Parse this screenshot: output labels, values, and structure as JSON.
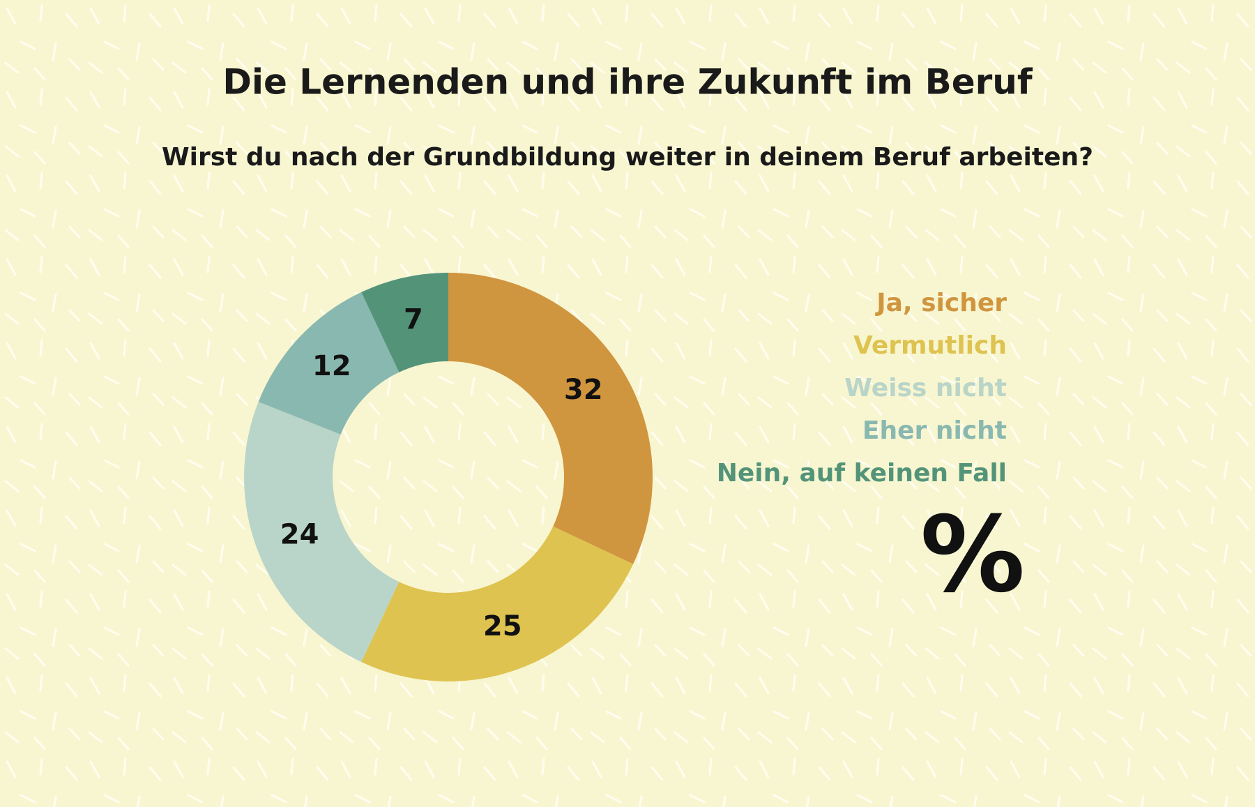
{
  "chart_data": {
    "type": "donut",
    "title": "Die Lernenden und ihre Zukunft im Beruf",
    "subtitle": "Wirst du nach der Grundbildung weiter in deinem Beruf arbeiten?",
    "categories": [
      "Ja, sicher",
      "Vermutlich",
      "Weiss nicht",
      "Eher nicht",
      "Nein, auf keinen Fall"
    ],
    "values": [
      32,
      25,
      24,
      12,
      7
    ],
    "colors": [
      "#d0953f",
      "#dfc350",
      "#b9d4c8",
      "#89b8b0",
      "#539479"
    ],
    "unit": "%"
  }
}
